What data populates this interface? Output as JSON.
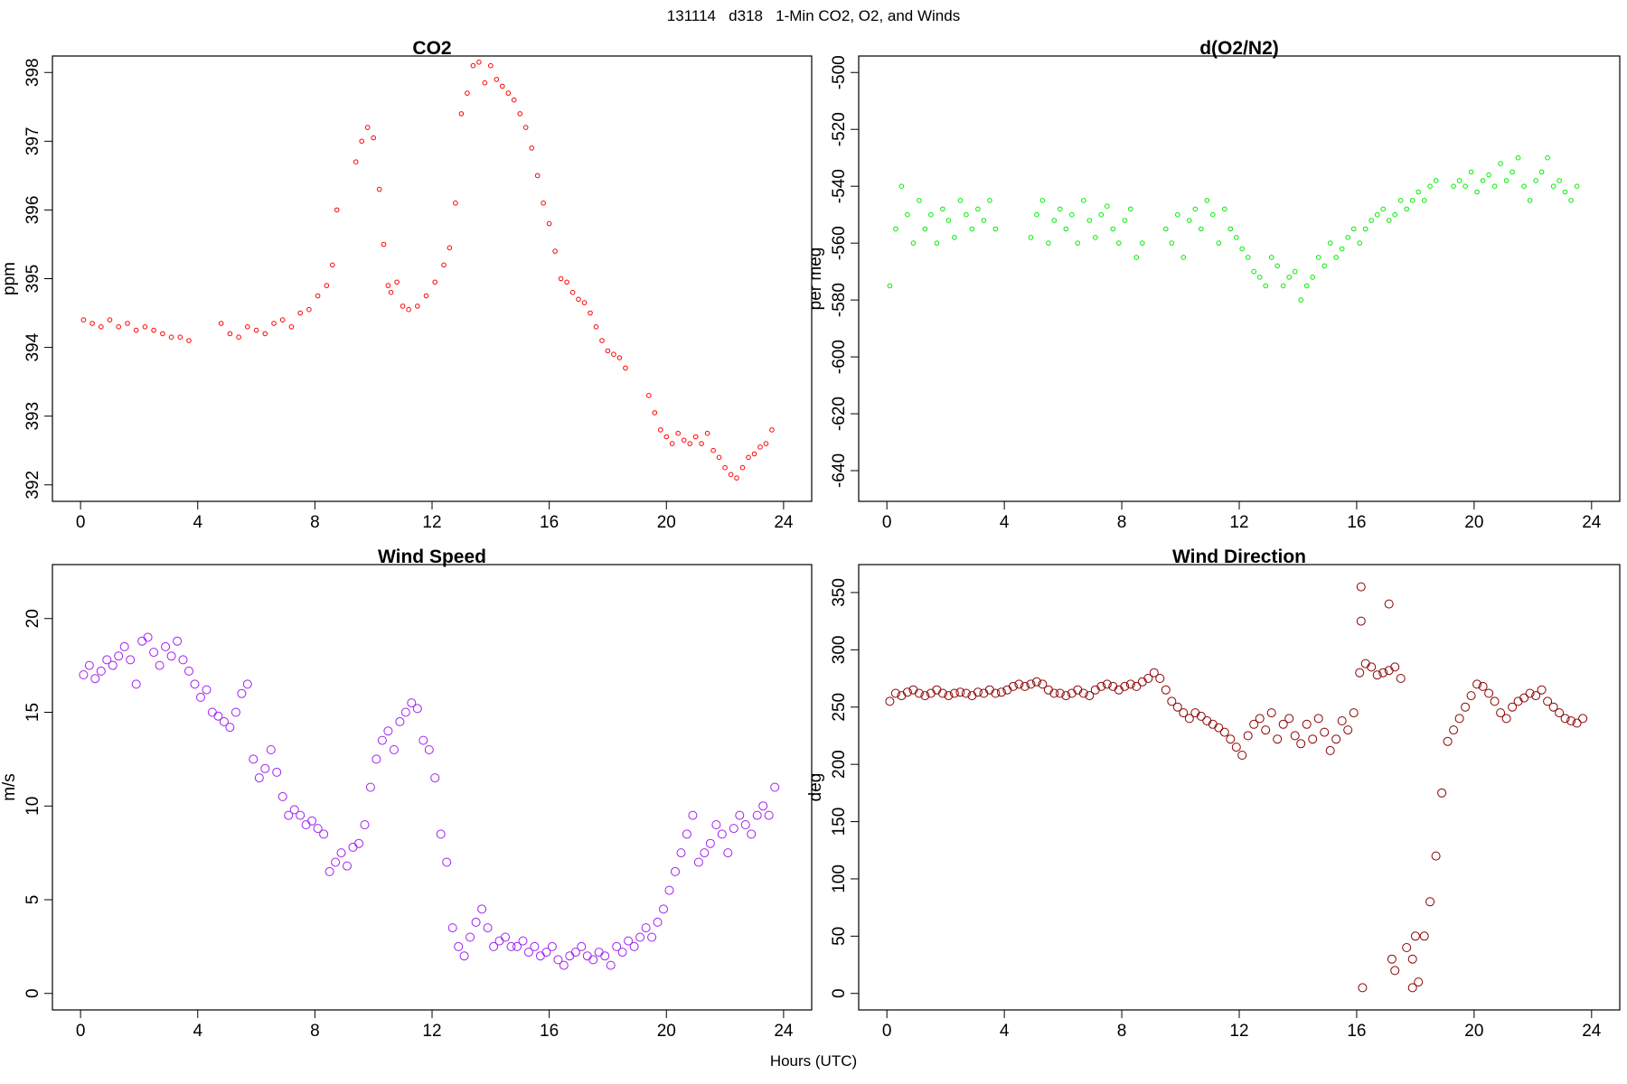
{
  "figure": {
    "title": "131114   d318   1-Min CO2, O2, and Winds",
    "xlabel": "Hours (UTC)"
  },
  "chart_data": [
    {
      "type": "scatter",
      "title": "CO2",
      "xlabel": "",
      "ylabel": "ppm",
      "xlim": [
        0,
        24
      ],
      "ylim": [
        392,
        398
      ],
      "xticks": [
        0,
        4,
        8,
        12,
        16,
        20,
        24
      ],
      "yticks": [
        392,
        393,
        394,
        395,
        396,
        397,
        398
      ],
      "grid": false,
      "color": "#ff0000",
      "series": [
        {
          "x": [
            0.1,
            0.4,
            0.7,
            1.0,
            1.3,
            1.6,
            1.9,
            2.2,
            2.5,
            2.8,
            3.1,
            3.4,
            3.7,
            4.8,
            5.1,
            5.4,
            5.7,
            6.0,
            6.3,
            6.6,
            6.9,
            7.2,
            7.5,
            7.8,
            8.1,
            8.4,
            8.6,
            8.75,
            9.4,
            9.6,
            9.8,
            10.0,
            10.2,
            10.35,
            10.5,
            10.6,
            10.8,
            11.0,
            11.2,
            11.5,
            11.8,
            12.1,
            12.4,
            12.6,
            12.8,
            13.0,
            13.2,
            13.4,
            13.6,
            13.8,
            14.0,
            14.2,
            14.4,
            14.6,
            14.8,
            15.0,
            15.2,
            15.4,
            15.6,
            15.8,
            16.0,
            16.2,
            16.4,
            16.6,
            16.8,
            17.0,
            17.2,
            17.4,
            17.6,
            17.8,
            18.0,
            18.2,
            18.4,
            18.6,
            19.4,
            19.6,
            19.8,
            20.0,
            20.2,
            20.4,
            20.6,
            20.8,
            21.0,
            21.2,
            21.4,
            21.6,
            21.8,
            22.0,
            22.2,
            22.4,
            22.6,
            22.8,
            23.0,
            23.2,
            23.4,
            23.6
          ],
          "y": [
            394.4,
            394.35,
            394.3,
            394.4,
            394.3,
            394.35,
            394.25,
            394.3,
            394.25,
            394.2,
            394.15,
            394.15,
            394.1,
            394.35,
            394.2,
            394.15,
            394.3,
            394.25,
            394.2,
            394.35,
            394.4,
            394.3,
            394.5,
            394.55,
            394.75,
            394.9,
            395.2,
            396.0,
            396.7,
            397.0,
            397.2,
            397.05,
            396.3,
            395.5,
            394.9,
            394.8,
            394.95,
            394.6,
            394.55,
            394.6,
            394.75,
            394.95,
            395.2,
            395.45,
            396.1,
            397.4,
            397.7,
            398.1,
            398.15,
            397.85,
            398.1,
            397.9,
            397.8,
            397.7,
            397.6,
            397.4,
            397.2,
            396.9,
            396.5,
            396.1,
            395.8,
            395.4,
            395.0,
            394.95,
            394.8,
            394.7,
            394.65,
            394.5,
            394.3,
            394.1,
            393.95,
            393.9,
            393.85,
            393.7,
            393.3,
            393.05,
            392.8,
            392.7,
            392.6,
            392.75,
            392.65,
            392.6,
            392.7,
            392.6,
            392.75,
            392.5,
            392.4,
            392.25,
            392.15,
            392.1,
            392.25,
            392.4,
            392.45,
            392.55,
            392.6,
            392.8
          ]
        }
      ]
    },
    {
      "type": "scatter",
      "title": "d(O2/N2)",
      "xlabel": "",
      "ylabel": "per meg",
      "xlim": [
        0,
        24
      ],
      "ylim": [
        -645,
        -500
      ],
      "xticks": [
        0,
        4,
        8,
        12,
        16,
        20,
        24
      ],
      "yticks": [
        -640,
        -620,
        -600,
        -580,
        -560,
        -540,
        -520,
        -500
      ],
      "grid": false,
      "color": "#00ee00",
      "series": [
        {
          "x": [
            0.1,
            0.3,
            0.5,
            0.7,
            0.9,
            1.1,
            1.3,
            1.5,
            1.7,
            1.9,
            2.1,
            2.3,
            2.5,
            2.7,
            2.9,
            3.1,
            3.3,
            3.5,
            3.7,
            4.9,
            5.1,
            5.3,
            5.5,
            5.7,
            5.9,
            6.1,
            6.3,
            6.5,
            6.7,
            6.9,
            7.1,
            7.3,
            7.5,
            7.7,
            7.9,
            8.1,
            8.3,
            8.5,
            8.7,
            9.5,
            9.7,
            9.9,
            10.1,
            10.3,
            10.5,
            10.7,
            10.9,
            11.1,
            11.3,
            11.5,
            11.7,
            11.9,
            12.1,
            12.3,
            12.5,
            12.7,
            12.9,
            13.1,
            13.3,
            13.5,
            13.7,
            13.9,
            14.1,
            14.3,
            14.5,
            14.7,
            14.9,
            15.1,
            15.3,
            15.5,
            15.7,
            15.9,
            16.1,
            16.3,
            16.5,
            16.7,
            16.9,
            17.1,
            17.3,
            17.5,
            17.7,
            17.9,
            18.1,
            18.3,
            18.5,
            18.7,
            19.3,
            19.5,
            19.7,
            19.9,
            20.1,
            20.3,
            20.5,
            20.7,
            20.9,
            21.1,
            21.3,
            21.5,
            21.7,
            21.9,
            22.1,
            22.3,
            22.5,
            22.7,
            22.9,
            23.1,
            23.3,
            23.5
          ],
          "y": [
            -575,
            -555,
            -540,
            -550,
            -560,
            -545,
            -555,
            -550,
            -560,
            -548,
            -552,
            -558,
            -545,
            -550,
            -555,
            -548,
            -552,
            -545,
            -555,
            -558,
            -550,
            -545,
            -560,
            -552,
            -548,
            -555,
            -550,
            -560,
            -545,
            -552,
            -558,
            -550,
            -547,
            -555,
            -560,
            -552,
            -548,
            -565,
            -560,
            -555,
            -560,
            -550,
            -565,
            -552,
            -548,
            -555,
            -545,
            -550,
            -560,
            -548,
            -555,
            -558,
            -562,
            -565,
            -570,
            -572,
            -575,
            -565,
            -568,
            -575,
            -572,
            -570,
            -580,
            -575,
            -572,
            -565,
            -568,
            -560,
            -565,
            -562,
            -558,
            -555,
            -560,
            -555,
            -552,
            -550,
            -548,
            -552,
            -550,
            -545,
            -548,
            -545,
            -542,
            -545,
            -540,
            -538,
            -540,
            -538,
            -540,
            -535,
            -542,
            -538,
            -536,
            -540,
            -532,
            -538,
            -535,
            -530,
            -540,
            -545,
            -538,
            -535,
            -530,
            -540,
            -538,
            -542,
            -545,
            -540
          ]
        }
      ]
    },
    {
      "type": "scatter",
      "title": "Wind Speed",
      "xlabel": "",
      "ylabel": "m/s",
      "xlim": [
        0,
        24
      ],
      "ylim": [
        0,
        22
      ],
      "xticks": [
        0,
        4,
        8,
        12,
        16,
        20,
        24
      ],
      "yticks": [
        0,
        5,
        10,
        15,
        20
      ],
      "grid": false,
      "color": "#a020f0",
      "series": [
        {
          "x": [
            0.1,
            0.3,
            0.5,
            0.7,
            0.9,
            1.1,
            1.3,
            1.5,
            1.7,
            1.9,
            2.1,
            2.3,
            2.5,
            2.7,
            2.9,
            3.1,
            3.3,
            3.5,
            3.7,
            3.9,
            4.1,
            4.3,
            4.5,
            4.7,
            4.9,
            5.1,
            5.3,
            5.5,
            5.7,
            5.9,
            6.1,
            6.3,
            6.5,
            6.7,
            6.9,
            7.1,
            7.3,
            7.5,
            7.7,
            7.9,
            8.1,
            8.3,
            8.5,
            8.7,
            8.9,
            9.1,
            9.3,
            9.5,
            9.7,
            9.9,
            10.1,
            10.3,
            10.5,
            10.7,
            10.9,
            11.1,
            11.3,
            11.5,
            11.7,
            11.9,
            12.1,
            12.3,
            12.5,
            12.7,
            12.9,
            13.1,
            13.3,
            13.5,
            13.7,
            13.9,
            14.1,
            14.3,
            14.5,
            14.7,
            14.9,
            15.1,
            15.3,
            15.5,
            15.7,
            15.9,
            16.1,
            16.3,
            16.5,
            16.7,
            16.9,
            17.1,
            17.3,
            17.5,
            17.7,
            17.9,
            18.1,
            18.3,
            18.5,
            18.7,
            18.9,
            19.1,
            19.3,
            19.5,
            19.7,
            19.9,
            20.1,
            20.3,
            20.5,
            20.7,
            20.9,
            21.1,
            21.3,
            21.5,
            21.7,
            21.9,
            22.1,
            22.3,
            22.5,
            22.7,
            22.9,
            23.1,
            23.3,
            23.5,
            23.7
          ],
          "y": [
            17.0,
            17.5,
            16.8,
            17.2,
            17.8,
            17.5,
            18.0,
            18.5,
            17.8,
            16.5,
            18.8,
            19.0,
            18.2,
            17.5,
            18.5,
            18.0,
            18.8,
            17.8,
            17.2,
            16.5,
            15.8,
            16.2,
            15.0,
            14.8,
            14.5,
            14.2,
            15.0,
            16.0,
            16.5,
            12.5,
            11.5,
            12.0,
            13.0,
            11.8,
            10.5,
            9.5,
            9.8,
            9.5,
            9.0,
            9.2,
            8.8,
            8.5,
            6.5,
            7.0,
            7.5,
            6.8,
            7.8,
            8.0,
            9.0,
            11.0,
            12.5,
            13.5,
            14.0,
            13.0,
            14.5,
            15.0,
            15.5,
            15.2,
            13.5,
            13.0,
            11.5,
            8.5,
            7.0,
            3.5,
            2.5,
            2.0,
            3.0,
            3.8,
            4.5,
            3.5,
            2.5,
            2.8,
            3.0,
            2.5,
            2.5,
            2.8,
            2.2,
            2.5,
            2.0,
            2.2,
            2.5,
            1.8,
            1.5,
            2.0,
            2.2,
            2.5,
            2.0,
            1.8,
            2.2,
            2.0,
            1.5,
            2.5,
            2.2,
            2.8,
            2.5,
            3.0,
            3.5,
            3.0,
            3.8,
            4.5,
            5.5,
            6.5,
            7.5,
            8.5,
            9.5,
            7.0,
            7.5,
            8.0,
            9.0,
            8.5,
            7.5,
            8.8,
            9.5,
            9.0,
            8.5,
            9.5,
            10.0,
            9.5,
            11.0
          ]
        }
      ]
    },
    {
      "type": "scatter",
      "title": "Wind Direction",
      "xlabel": "",
      "ylabel": "deg",
      "xlim": [
        0,
        24
      ],
      "ylim": [
        0,
        360
      ],
      "xticks": [
        0,
        4,
        8,
        12,
        16,
        20,
        24
      ],
      "yticks": [
        0,
        50,
        100,
        150,
        200,
        250,
        300,
        350
      ],
      "grid": false,
      "color": "#8b0000",
      "series": [
        {
          "x": [
            0.1,
            0.3,
            0.5,
            0.7,
            0.9,
            1.1,
            1.3,
            1.5,
            1.7,
            1.9,
            2.1,
            2.3,
            2.5,
            2.7,
            2.9,
            3.1,
            3.3,
            3.5,
            3.7,
            3.9,
            4.1,
            4.3,
            4.5,
            4.7,
            4.9,
            5.1,
            5.3,
            5.5,
            5.7,
            5.9,
            6.1,
            6.3,
            6.5,
            6.7,
            6.9,
            7.1,
            7.3,
            7.5,
            7.7,
            7.9,
            8.1,
            8.3,
            8.5,
            8.7,
            8.9,
            9.1,
            9.3,
            9.5,
            9.7,
            9.9,
            10.1,
            10.3,
            10.5,
            10.7,
            10.9,
            11.1,
            11.3,
            11.5,
            11.7,
            11.9,
            12.1,
            12.3,
            12.5,
            12.7,
            12.9,
            13.1,
            13.3,
            13.5,
            13.7,
            13.9,
            14.1,
            14.3,
            14.5,
            14.7,
            14.9,
            15.1,
            15.3,
            15.5,
            15.7,
            15.9,
            16.1,
            16.3,
            16.5,
            16.7,
            16.9,
            17.1,
            17.3,
            17.5,
            17.7,
            17.9,
            18.1,
            18.3,
            18.5,
            18.7,
            18.9,
            19.1,
            19.3,
            19.5,
            19.7,
            19.9,
            20.1,
            20.3,
            20.5,
            20.7,
            20.9,
            21.1,
            21.3,
            21.5,
            21.7,
            21.9,
            22.1,
            22.3,
            22.5,
            22.7,
            22.9,
            23.1,
            23.3,
            23.5,
            23.7,
            16.15,
            16.2,
            17.1,
            17.2,
            17.9,
            18.0,
            16.15,
            17.3
          ],
          "y": [
            255,
            262,
            260,
            263,
            265,
            262,
            260,
            262,
            265,
            262,
            260,
            262,
            263,
            262,
            260,
            263,
            262,
            265,
            262,
            263,
            265,
            268,
            270,
            268,
            270,
            272,
            270,
            265,
            262,
            262,
            260,
            262,
            265,
            262,
            260,
            265,
            268,
            270,
            268,
            265,
            268,
            270,
            268,
            272,
            275,
            280,
            275,
            265,
            255,
            250,
            245,
            240,
            245,
            242,
            238,
            235,
            232,
            228,
            222,
            215,
            208,
            225,
            235,
            240,
            230,
            245,
            222,
            235,
            240,
            225,
            218,
            235,
            222,
            240,
            228,
            212,
            222,
            238,
            230,
            245,
            280,
            288,
            285,
            278,
            280,
            282,
            285,
            275,
            40,
            30,
            10,
            50,
            80,
            120,
            175,
            220,
            230,
            240,
            250,
            260,
            270,
            268,
            262,
            255,
            245,
            240,
            250,
            255,
            258,
            262,
            260,
            265,
            255,
            250,
            245,
            240,
            238,
            236,
            240,
            355,
            5,
            340,
            30,
            5,
            50,
            325,
            20
          ]
        }
      ]
    }
  ]
}
